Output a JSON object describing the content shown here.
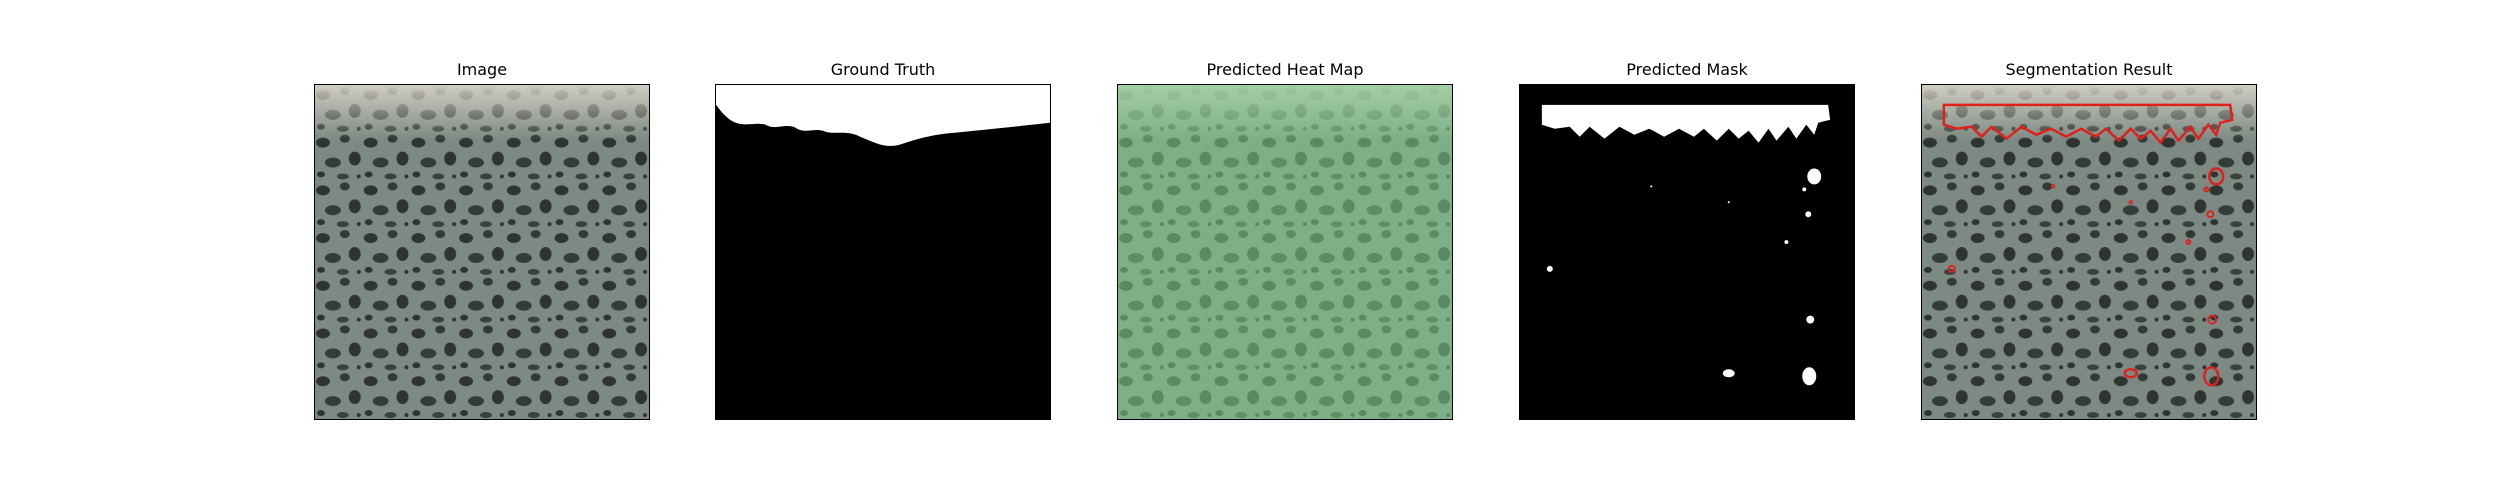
{
  "panels": [
    {
      "title": "Image"
    },
    {
      "title": "Ground Truth"
    },
    {
      "title": "Predicted Heat Map"
    },
    {
      "title": "Predicted Mask"
    },
    {
      "title": "Segmentation Result"
    }
  ],
  "colors": {
    "texture_base": "#7c8a83",
    "texture_spot": "#2f3431",
    "heatmap_tint": "#7fd08a",
    "mask_white": "#ffffff",
    "mask_black": "#000000",
    "contour_red": "#e0201c"
  }
}
